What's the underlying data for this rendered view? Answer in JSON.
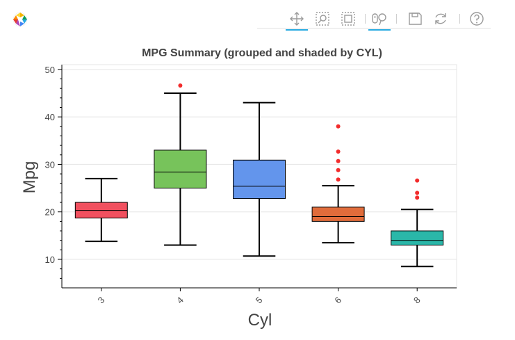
{
  "toolbar": {
    "logo": "bokeh-logo-icon",
    "tools": [
      {
        "icon": "pan-icon",
        "active": true
      },
      {
        "icon": "box-zoom-icon",
        "active": false
      },
      {
        "icon": "box-select-icon",
        "active": false
      },
      {
        "icon": "wheel-zoom-icon",
        "active": true
      },
      {
        "icon": "save-icon",
        "active": false
      },
      {
        "icon": "reset-icon",
        "active": false
      },
      {
        "icon": "help-icon",
        "active": false
      }
    ]
  },
  "chart_data": {
    "type": "boxplot",
    "title": "MPG Summary (grouped and shaded by CYL)",
    "xlabel": "Cyl",
    "ylabel": "Mpg",
    "ylim": [
      4,
      51
    ],
    "y_ticks": [
      10,
      20,
      30,
      40,
      50
    ],
    "grid": true,
    "categories": [
      "3",
      "4",
      "5",
      "6",
      "8"
    ],
    "boxes": [
      {
        "category": "3",
        "whisker_low": 13.8,
        "q1": 18.7,
        "median": 20.3,
        "q3": 22.0,
        "whisker_high": 27.0,
        "outliers": [],
        "color": "#f1505f"
      },
      {
        "category": "4",
        "whisker_low": 13.0,
        "q1": 25.0,
        "median": 28.4,
        "q3": 33.0,
        "whisker_high": 45.0,
        "outliers": [
          46.6
        ],
        "color": "#77c35b"
      },
      {
        "category": "5",
        "whisker_low": 10.7,
        "q1": 22.8,
        "median": 25.4,
        "q3": 30.9,
        "whisker_high": 43.0,
        "outliers": [],
        "color": "#6395ec"
      },
      {
        "category": "6",
        "whisker_low": 13.5,
        "q1": 18.0,
        "median": 19.0,
        "q3": 21.0,
        "whisker_high": 25.5,
        "outliers": [
          26.8,
          28.8,
          30.7,
          32.7,
          38.0
        ],
        "color": "#e06c3b"
      },
      {
        "category": "8",
        "whisker_low": 8.5,
        "q1": 13.0,
        "median": 14.0,
        "q3": 16.0,
        "whisker_high": 20.5,
        "outliers": [
          23.0,
          24.0,
          26.6
        ],
        "color": "#2ab7a9"
      }
    ],
    "outlier_color": "#f22c2c"
  }
}
